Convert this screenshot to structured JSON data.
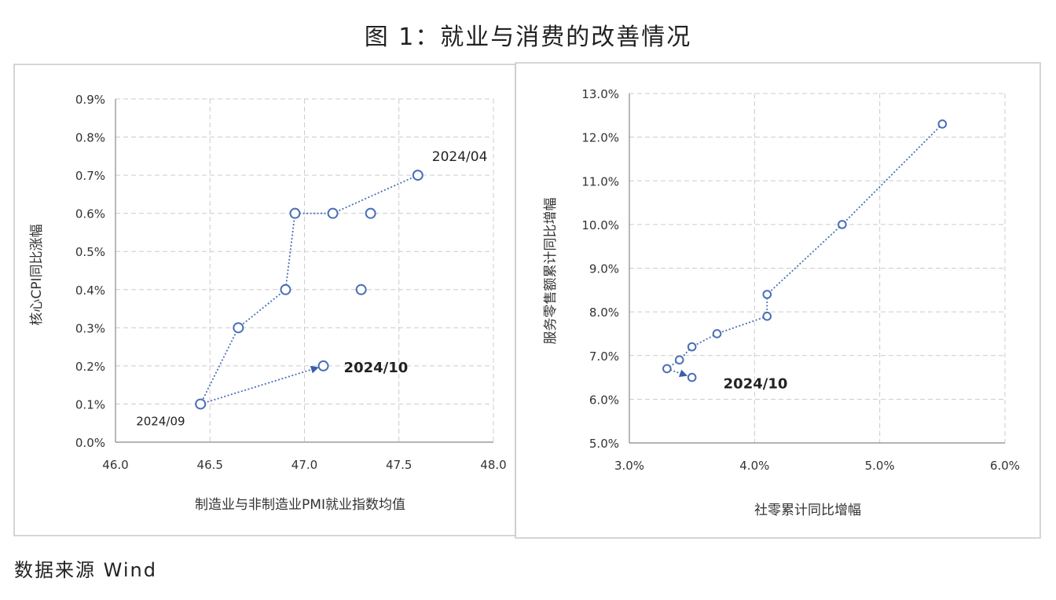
{
  "figure": {
    "title": "图 1：就业与消费的改善情况",
    "source": "数据来源 Wind"
  },
  "colors": {
    "series": "#4a6fb5",
    "grid": "#cccccc",
    "axis_text": "#333333",
    "panel_border": "#c8c8c8"
  },
  "chart_data": [
    {
      "type": "scatter",
      "title": "",
      "xlabel": "制造业与非制造业PMI就业指数均值",
      "ylabel": "核心CPI同比涨幅",
      "xlim": [
        46.0,
        48.0
      ],
      "ylim": [
        0.0,
        0.9
      ],
      "x_ticks": [
        "46.0",
        "46.5",
        "47.0",
        "47.5",
        "48.0"
      ],
      "y_ticks": [
        "0.0%",
        "0.1%",
        "0.2%",
        "0.3%",
        "0.4%",
        "0.5%",
        "0.6%",
        "0.7%",
        "0.8%",
        "0.9%"
      ],
      "grid": true,
      "line_style": "dotted",
      "series": [
        {
          "points": [
            {
              "x": 47.35,
              "y": 0.6
            },
            {
              "x": 47.3,
              "y": 0.4
            },
            {
              "x": 47.6,
              "y": 0.7
            },
            {
              "x": 47.15,
              "y": 0.6
            },
            {
              "x": 46.95,
              "y": 0.6
            },
            {
              "x": 46.9,
              "y": 0.4
            },
            {
              "x": 46.65,
              "y": 0.3
            },
            {
              "x": 46.45,
              "y": 0.1
            },
            {
              "x": 47.1,
              "y": 0.2
            }
          ],
          "path_from_index": 2
        }
      ],
      "annotations": [
        {
          "text": "2024/04",
          "x": 47.6,
          "y": 0.7,
          "bold": false
        },
        {
          "text": "2024/09",
          "x": 46.45,
          "y": 0.1,
          "bold": false
        },
        {
          "text": "2024/10",
          "x": 47.1,
          "y": 0.2,
          "bold": true
        }
      ]
    },
    {
      "type": "scatter",
      "title": "",
      "xlabel": "社零累计同比增幅",
      "ylabel": "服务零售额累计同比增幅",
      "xlim": [
        3.0,
        6.0
      ],
      "ylim": [
        5.0,
        13.0
      ],
      "x_ticks": [
        "3.0%",
        "4.0%",
        "5.0%",
        "6.0%"
      ],
      "y_ticks": [
        "5.0%",
        "6.0%",
        "7.0%",
        "8.0%",
        "9.0%",
        "10.0%",
        "11.0%",
        "12.0%",
        "13.0%"
      ],
      "grid": true,
      "line_style": "dotted",
      "series": [
        {
          "points": [
            {
              "x": 5.5,
              "y": 12.3
            },
            {
              "x": 4.7,
              "y": 10.0
            },
            {
              "x": 4.1,
              "y": 8.4
            },
            {
              "x": 4.1,
              "y": 7.9
            },
            {
              "x": 3.7,
              "y": 7.5
            },
            {
              "x": 3.5,
              "y": 7.2
            },
            {
              "x": 3.4,
              "y": 6.9
            },
            {
              "x": 3.3,
              "y": 6.7
            },
            {
              "x": 3.5,
              "y": 6.5
            }
          ],
          "path_from_index": 0
        }
      ],
      "annotations": [
        {
          "text": "2024/10",
          "x": 3.5,
          "y": 6.5,
          "bold": true
        }
      ]
    }
  ]
}
